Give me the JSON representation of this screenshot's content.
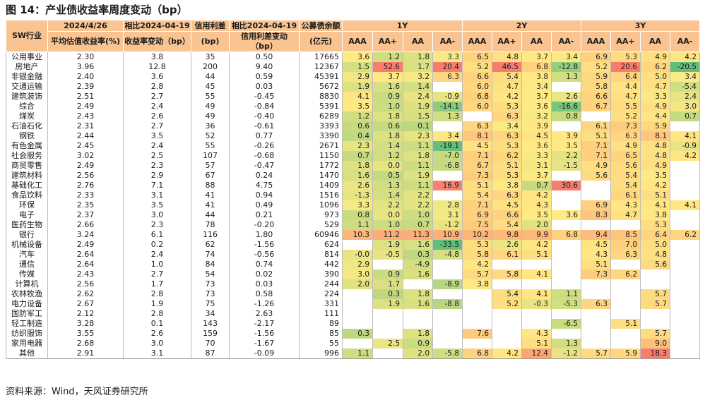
{
  "title": "图 14：产业债收益率周度变动（bp）",
  "source": "资料来源：Wind，天风证券研究所",
  "colors": {
    "header_bg": "#f9c492",
    "scale_low": "#63be7b",
    "scale_mid": "#ffeb84",
    "scale_high": "#f8696b"
  },
  "chart_data": {
    "type": "table",
    "title": "图 14：产业债收益率周度变动（bp）",
    "header_top": {
      "industry": "SW行业",
      "date": "2024/4/26",
      "chg": "相比2024-04-19",
      "spread": "信用利差",
      "spread_chg": "相比2024-04-19",
      "count": "公募债余额",
      "groups": [
        "1Y",
        "2Y",
        "3Y"
      ]
    },
    "header_sub": {
      "date": "平均估值收益率(%)",
      "chg": "收益率变动（bp）",
      "spread": "(bp)",
      "spread_chg": "信用利差变动（bp）",
      "count": "(亿元)",
      "grades": [
        "AAA",
        "AA+",
        "AA",
        "AA-"
      ]
    },
    "rows": [
      {
        "name": "公用事业",
        "yld": "2.30",
        "chg": "3.8",
        "spread": "35",
        "schg": "0.50",
        "amt": "17665",
        "g": [
          [
            "3.6",
            "1.2",
            "1.8",
            "3.3"
          ],
          [
            "6.5",
            "4.8",
            "3.7",
            "3.4"
          ],
          [
            "6.9",
            "5.3",
            "4.9",
            "4.2"
          ]
        ]
      },
      {
        "name": "房地产",
        "yld": "3.96",
        "chg": "12.8",
        "spread": "200",
        "schg": "9.40",
        "amt": "12367",
        "g": [
          [
            "1.5",
            "52.6",
            "1.7",
            "20.4"
          ],
          [
            "5.2",
            "46.5",
            "6.8",
            "-12.8"
          ],
          [
            "5.2",
            "20.6",
            "6.2",
            "-20.5"
          ]
        ]
      },
      {
        "name": "非银金融",
        "yld": "2.40",
        "chg": "3.6",
        "spread": "44",
        "schg": "0.59",
        "amt": "45391",
        "g": [
          [
            "2.9",
            "3.7",
            "3.2",
            "6.3"
          ],
          [
            "6.6",
            "5.4",
            "3.8",
            "1.3"
          ],
          [
            "5.9",
            "6.4",
            "5.0",
            "3.4"
          ]
        ]
      },
      {
        "name": "交通运输",
        "yld": "2.39",
        "chg": "2.8",
        "spread": "45",
        "schg": "0.03",
        "amt": "5672",
        "g": [
          [
            "1.9",
            "1.6",
            "1.4",
            ""
          ],
          [
            "6.0",
            "4.7",
            "3.4",
            ""
          ],
          [
            "5.8",
            "4.4",
            "4.7",
            "-5.4"
          ]
        ]
      },
      {
        "name": "建筑装饰",
        "yld": "2.51",
        "chg": "2.7",
        "spread": "55",
        "schg": "-0.45",
        "amt": "8830",
        "g": [
          [
            "4.1",
            "0.9",
            "2.4",
            "-0.9"
          ],
          [
            "6.8",
            "4.2",
            "3.7",
            "2.6"
          ],
          [
            "6.6",
            "4.7",
            "3.3",
            "2.4"
          ]
        ]
      },
      {
        "name": "综合",
        "yld": "2.49",
        "chg": "2.4",
        "spread": "49",
        "schg": "-0.84",
        "amt": "5391",
        "g": [
          [
            "3.5",
            "1.0",
            "1.9",
            "-14.1"
          ],
          [
            "6.0",
            "5.3",
            "3.6",
            "-16.6"
          ],
          [
            "6.7",
            "5.5",
            "4.9",
            "3.0"
          ]
        ]
      },
      {
        "name": "煤炭",
        "yld": "2.43",
        "chg": "2.6",
        "spread": "49",
        "schg": "-0.40",
        "amt": "6289",
        "g": [
          [
            "1.2",
            "1.8",
            "1.5",
            "1.3"
          ],
          [
            "",
            "6.3",
            "3.2",
            "0.8"
          ],
          [
            "",
            "5.2",
            "4.4",
            "0.7"
          ]
        ]
      },
      {
        "name": "石油石化",
        "yld": "2.31",
        "chg": "2.7",
        "spread": "36",
        "schg": "-0.61",
        "amt": "3393",
        "g": [
          [
            "0.6",
            "0.6",
            "0.1",
            ""
          ],
          [
            "6.3",
            "3.4",
            "3.9",
            ""
          ],
          [
            "6.1",
            "7.3",
            "5.9",
            ""
          ]
        ]
      },
      {
        "name": "钢铁",
        "yld": "2.44",
        "chg": "3.5",
        "spread": "52",
        "schg": "0.77",
        "amt": "3390",
        "g": [
          [
            "0.4",
            "1.8",
            "2.3",
            "3.4"
          ],
          [
            "8.1",
            "6.3",
            "4.5",
            "3.9"
          ],
          [
            "5.1",
            "6.3",
            "8.1",
            "4.1"
          ]
        ]
      },
      {
        "name": "有色金属",
        "yld": "2.45",
        "chg": "2.4",
        "spread": "55",
        "schg": "-0.26",
        "amt": "2671",
        "g": [
          [
            "2.3",
            "1.4",
            "1.1",
            "-19.1"
          ],
          [
            "4.5",
            "5.3",
            "3.6",
            "3.5"
          ],
          [
            "7.1",
            "4.9",
            "4.8",
            "-0.9"
          ]
        ]
      },
      {
        "name": "社会服务",
        "yld": "3.02",
        "chg": "2.5",
        "spread": "107",
        "schg": "-0.68",
        "amt": "1150",
        "g": [
          [
            "0.7",
            "1.2",
            "1.8",
            "-7.0"
          ],
          [
            "7.1",
            "6.2",
            "3.3",
            "2.2"
          ],
          [
            "7.1",
            "6.5",
            "4.8",
            "4.2"
          ]
        ]
      },
      {
        "name": "商贸零售",
        "yld": "2.49",
        "chg": "2.3",
        "spread": "57",
        "schg": "-0.47",
        "amt": "1772",
        "g": [
          [
            "1.8",
            "0.0",
            "1.1",
            "-6.8"
          ],
          [
            "6.7",
            "5.1",
            "3.1",
            "-1.5"
          ],
          [
            "4.9",
            "5.6",
            "4.9",
            ""
          ]
        ]
      },
      {
        "name": "建筑材料",
        "yld": "2.56",
        "chg": "2.9",
        "spread": "67",
        "schg": "0.24",
        "amt": "1470",
        "g": [
          [
            "1.6",
            "0.5",
            "1.9",
            ""
          ],
          [
            "7.3",
            "5.3",
            "3.7",
            ""
          ],
          [
            "5.6",
            "5.4",
            "3.5",
            ""
          ]
        ]
      },
      {
        "name": "基础化工",
        "yld": "2.76",
        "chg": "7.1",
        "spread": "88",
        "schg": "4.75",
        "amt": "1409",
        "g": [
          [
            "2.6",
            "1.3",
            "1.1",
            "16.9"
          ],
          [
            "5.1",
            "3.8",
            "0.7",
            "30.6"
          ],
          [
            "",
            "5.4",
            "4.2",
            ""
          ]
        ]
      },
      {
        "name": "食品饮料",
        "yld": "2.33",
        "chg": "3.1",
        "spread": "41",
        "schg": "0.94",
        "amt": "1516",
        "g": [
          [
            "-1.3",
            "1.4",
            "2.2",
            ""
          ],
          [
            "5.4",
            "6.3",
            "4.2",
            ""
          ],
          [
            "",
            "6.1",
            "5.1",
            ""
          ]
        ]
      },
      {
        "name": "环保",
        "yld": "2.35",
        "chg": "3.5",
        "spread": "41",
        "schg": "0.49",
        "amt": "1096",
        "g": [
          [
            "3.3",
            "2.2",
            "2.2",
            "2.8"
          ],
          [
            "7.1",
            "4.5",
            "4.3",
            ""
          ],
          [
            "6.9",
            "4.3",
            "4.1",
            "4.1"
          ]
        ]
      },
      {
        "name": "电子",
        "yld": "2.37",
        "chg": "3.0",
        "spread": "44",
        "schg": "0.21",
        "amt": "973",
        "g": [
          [
            "0.8",
            "0.0",
            "1.0",
            "3.1"
          ],
          [
            "6.9",
            "6.6",
            "3.5",
            "3.6"
          ],
          [
            "8.3",
            "4.7",
            "3.8",
            ""
          ]
        ]
      },
      {
        "name": "医药生物",
        "yld": "2.66",
        "chg": "2.3",
        "spread": "78",
        "schg": "-0.20",
        "amt": "529",
        "g": [
          [
            "1.1",
            "1.0",
            "0.7",
            "-1.2"
          ],
          [
            "7.5",
            "5.4",
            "2.0",
            ""
          ],
          [
            "",
            "",
            "5.3",
            ""
          ]
        ]
      },
      {
        "name": "银行",
        "yld": "3.24",
        "chg": "6.1",
        "spread": "116",
        "schg": "1.80",
        "amt": "60946",
        "g": [
          [
            "10.3",
            "11.2",
            "11.3",
            "10.9"
          ],
          [
            "10.2",
            "9.8",
            "9.9",
            "6.8"
          ],
          [
            "9.4",
            "8.5",
            "6.4",
            "6.2"
          ]
        ]
      },
      {
        "name": "机械设备",
        "yld": "2.49",
        "chg": "0.2",
        "spread": "62",
        "schg": "-1.56",
        "amt": "624",
        "g": [
          [
            "",
            "1.9",
            "1.6",
            "-33.5"
          ],
          [
            "5.3",
            "2.6",
            "4.2",
            ""
          ],
          [
            "4.5",
            "7.0",
            "5.0",
            ""
          ]
        ]
      },
      {
        "name": "汽车",
        "yld": "2.64",
        "chg": "2.4",
        "spread": "74",
        "schg": "-0.56",
        "amt": "814",
        "g": [
          [
            "-0.0",
            "-0.5",
            "0.3",
            "-4.8"
          ],
          [
            "5.8",
            "6.1",
            "5.1",
            ""
          ],
          [
            "4.3",
            "6.3",
            "4.8",
            ""
          ]
        ]
      },
      {
        "name": "通信",
        "yld": "2.64",
        "chg": "1.0",
        "spread": "84",
        "schg": "0.74",
        "amt": "442",
        "g": [
          [
            "2.9",
            "",
            "-4.9",
            ""
          ],
          [
            "4.2",
            "",
            "",
            ""
          ],
          [
            "5.1",
            "",
            "5.6",
            ""
          ]
        ]
      },
      {
        "name": "传媒",
        "yld": "2.43",
        "chg": "2.7",
        "spread": "54",
        "schg": "0.02",
        "amt": "390",
        "g": [
          [
            "3.0",
            "0.9",
            "1.6",
            ""
          ],
          [
            "5.7",
            "5.8",
            "4.1",
            ""
          ],
          [
            "7.3",
            "6.2",
            "",
            ""
          ]
        ]
      },
      {
        "name": "计算机",
        "yld": "2.56",
        "chg": "1.7",
        "spread": "73",
        "schg": "0.03",
        "amt": "244",
        "g": [
          [
            "2.0",
            "1.7",
            "",
            "-8.9"
          ],
          [
            "3.8",
            "",
            "",
            ""
          ],
          [
            "",
            "",
            "",
            ""
          ]
        ]
      },
      {
        "name": "农林牧渔",
        "yld": "2.62",
        "chg": "2.8",
        "spread": "73",
        "schg": "0.58",
        "amt": "224",
        "g": [
          [
            "",
            "0.3",
            "1.8",
            ""
          ],
          [
            "",
            "5.4",
            "4.1",
            "1.1"
          ],
          [
            "",
            "",
            "5.7",
            ""
          ]
        ]
      },
      {
        "name": "电力设备",
        "yld": "2.67",
        "chg": "1.9",
        "spread": "75",
        "schg": "-1.26",
        "amt": "331",
        "g": [
          [
            "",
            "1.9",
            "1.6",
            "-8.8"
          ],
          [
            "",
            "5.2",
            "-0.3",
            "-5.3"
          ],
          [
            "6.3",
            "",
            "5.7",
            ""
          ]
        ]
      },
      {
        "name": "国防军工",
        "yld": "2.12",
        "chg": "2.8",
        "spread": "34",
        "schg": "2.63",
        "amt": "111",
        "g": [
          [
            "",
            "",
            "",
            ""
          ],
          [
            "",
            "",
            "",
            ""
          ],
          [
            "",
            "",
            "",
            ""
          ]
        ]
      },
      {
        "name": "轻工制造",
        "yld": "3.28",
        "chg": "0.1",
        "spread": "143",
        "schg": "-2.17",
        "amt": "89",
        "g": [
          [
            "",
            "",
            "",
            ""
          ],
          [
            "",
            "",
            "",
            "-6.5"
          ],
          [
            "",
            "5.1",
            "",
            ""
          ]
        ]
      },
      {
        "name": "纺织服饰",
        "yld": "3.55",
        "chg": "2.6",
        "spread": "159",
        "schg": "-1.56",
        "amt": "85",
        "g": [
          [
            "0.3",
            "",
            "1.8",
            ""
          ],
          [
            "7.6",
            "",
            "4.3",
            ""
          ],
          [
            "",
            "",
            "5.7",
            ""
          ]
        ]
      },
      {
        "name": "家用电器",
        "yld": "2.68",
        "chg": "3.0",
        "spread": "70",
        "schg": "-1.67",
        "amt": "55",
        "g": [
          [
            "",
            "2.5",
            "0.9",
            ""
          ],
          [
            "",
            "",
            "5.1",
            "1.3"
          ],
          [
            "",
            "",
            "9.0",
            ""
          ]
        ]
      },
      {
        "name": "其他",
        "yld": "2.91",
        "chg": "3.1",
        "spread": "87",
        "schg": "-0.09",
        "amt": "996",
        "g": [
          [
            "1.1",
            "",
            "2.0",
            "-5.8"
          ],
          [
            "6.8",
            "4.2",
            "12.4",
            "-1.2"
          ],
          [
            "5.7",
            "5.9",
            "18.3",
            ""
          ]
        ]
      }
    ]
  }
}
